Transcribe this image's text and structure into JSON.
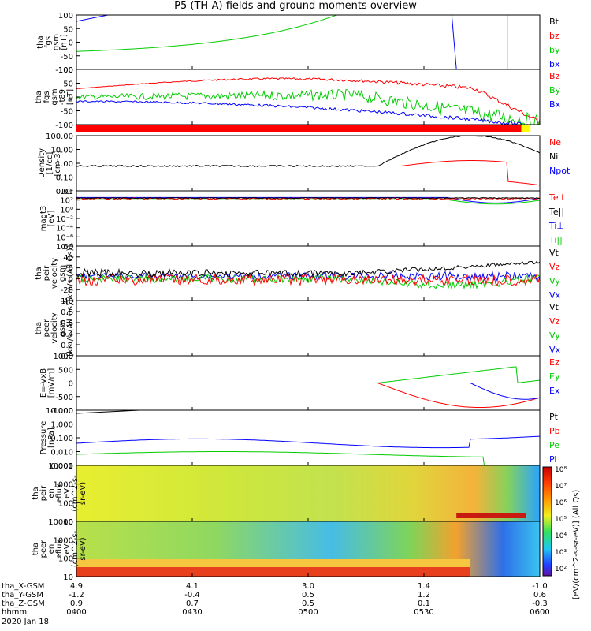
{
  "title": "P5 (TH-A) fields and ground moments overview",
  "chart_data": {
    "type": "line",
    "time_ticks": [
      "0400",
      "0430",
      "0500",
      "0530",
      "0600"
    ],
    "orbit": [
      {
        "label": "tha_X-GSM",
        "values": [
          "4.9",
          "4.1",
          "3.0",
          "1.4",
          "-1.0"
        ]
      },
      {
        "label": "tha_Y-GSM",
        "values": [
          "-1.2",
          "-0.4",
          "0.5",
          "1.2",
          "0.6"
        ]
      },
      {
        "label": "tha_Z-GSM",
        "values": [
          "0.9",
          "0.7",
          "0.5",
          "0.1",
          "-0.3"
        ]
      },
      {
        "label": "hhmm",
        "values": [
          "0400",
          "0430",
          "0500",
          "0530",
          "0600"
        ]
      }
    ],
    "date": "2020 Jan 18",
    "panels": [
      {
        "ylabel": [
          "tha",
          "fgs",
          "gsm",
          "[nT]"
        ],
        "ticks": [
          "100",
          "50",
          "0",
          "-50",
          "-100"
        ],
        "legend": [
          {
            "t": "Bt",
            "c": "#000000"
          },
          {
            "t": "bz",
            "c": "#ff0000"
          },
          {
            "t": "by",
            "c": "#00cc00"
          },
          {
            "t": "bx",
            "c": "#0000ff"
          }
        ]
      },
      {
        "ylabel": [
          "tha",
          "fgs",
          "gsm",
          "-t89",
          "[nT]"
        ],
        "ticks": [
          "100",
          "50",
          "0",
          "-50",
          "-100"
        ],
        "legend": [
          {
            "t": "Bz",
            "c": "#ff0000"
          },
          {
            "t": "By",
            "c": "#00cc00"
          },
          {
            "t": "Bx",
            "c": "#0000ff"
          }
        ]
      },
      {
        "ylabel": [
          "Density",
          "[1/cc]",
          "[cm-3]"
        ],
        "ticks": [
          "100.00",
          "10.00",
          "1.00",
          "0.10",
          "0.01"
        ],
        "legend": [
          {
            "t": "Ne",
            "c": "#ff0000"
          },
          {
            "t": "Ni",
            "c": "#000000"
          },
          {
            "t": "Npot",
            "c": "#0000ff"
          }
        ]
      },
      {
        "ylabel": [
          "magt3",
          "[eV]"
        ],
        "ticks": [
          "10⁴",
          "10²",
          "10⁰",
          "10⁻²",
          "10⁻⁴",
          "10⁻⁶",
          "10⁻⁸"
        ],
        "legend": [
          {
            "t": "Te⊥",
            "c": "#ff0000"
          },
          {
            "t": "Te||",
            "c": "#000000"
          },
          {
            "t": "Ti⊥",
            "c": "#0000ff"
          },
          {
            "t": "Ti||",
            "c": "#00cc00"
          }
        ]
      },
      {
        "ylabel": [
          "tha",
          "peir",
          "velocity",
          "gsm",
          "[km/s (All Qs)]"
        ],
        "ticks": [
          "60",
          "40",
          "20",
          "0",
          "-20",
          "-40"
        ],
        "legend": [
          {
            "t": "Vt",
            "c": "#000000"
          },
          {
            "t": "Vz",
            "c": "#ff0000"
          },
          {
            "t": "Vy",
            "c": "#00cc00"
          },
          {
            "t": "Vx",
            "c": "#0000ff"
          }
        ]
      },
      {
        "ylabel": [
          "tha",
          "peer",
          "velocity",
          "gsm",
          "[km/s (All Qs)]"
        ],
        "ticks": [
          "1.0",
          "0.8",
          "0.6",
          "0.4",
          "0.2",
          "0.0"
        ],
        "legend": [
          {
            "t": "Vt",
            "c": "#000000"
          },
          {
            "t": "Vz",
            "c": "#ff0000"
          },
          {
            "t": "Vy",
            "c": "#00cc00"
          },
          {
            "t": "Vx",
            "c": "#0000ff"
          }
        ]
      },
      {
        "ylabel": [
          "E=-VxB",
          "[mV/m]"
        ],
        "ticks": [
          "1000",
          "500",
          "0",
          "-500",
          "-1000"
        ],
        "legend": [
          {
            "t": "Ez",
            "c": "#ff0000"
          },
          {
            "t": "Ey",
            "c": "#00cc00"
          },
          {
            "t": "Ex",
            "c": "#0000ff"
          }
        ]
      },
      {
        "ylabel": [
          "Pressure",
          "[nPa]"
        ],
        "ticks": [
          "10.000",
          "1.000",
          "0.100",
          "0.010",
          "0.001"
        ],
        "legend": [
          {
            "t": "Pt",
            "c": "#000000"
          },
          {
            "t": "Pb",
            "c": "#ff0000"
          },
          {
            "t": "Pe",
            "c": "#00cc00"
          },
          {
            "t": "Pi",
            "c": "#0000ff"
          }
        ]
      },
      {
        "ylabel": [
          "tha",
          "peir",
          "en",
          "eflux",
          "eV",
          "(cm^2-s-",
          "sr-eV)"
        ],
        "ticks": [
          "10000",
          "1000",
          "100",
          "10"
        ],
        "legend": []
      },
      {
        "ylabel": [
          "tha",
          "peer",
          "en",
          "eflux",
          "eV",
          "(cm^2-s-",
          "sr-eV)"
        ],
        "ticks": [
          "10000",
          "1000",
          "100",
          "10"
        ],
        "legend": []
      }
    ],
    "colorbar": {
      "labels": [
        "10⁸",
        "10⁷",
        "10⁶",
        "10⁵",
        "10⁴",
        "10³",
        "10²"
      ],
      "title": "[eV/(cm^2-s-sr-eV)] (All Qs)"
    },
    "series_colors": {
      "black": "#000000",
      "red": "#ff0000",
      "green": "#00cc00",
      "blue": "#0000ff"
    }
  }
}
